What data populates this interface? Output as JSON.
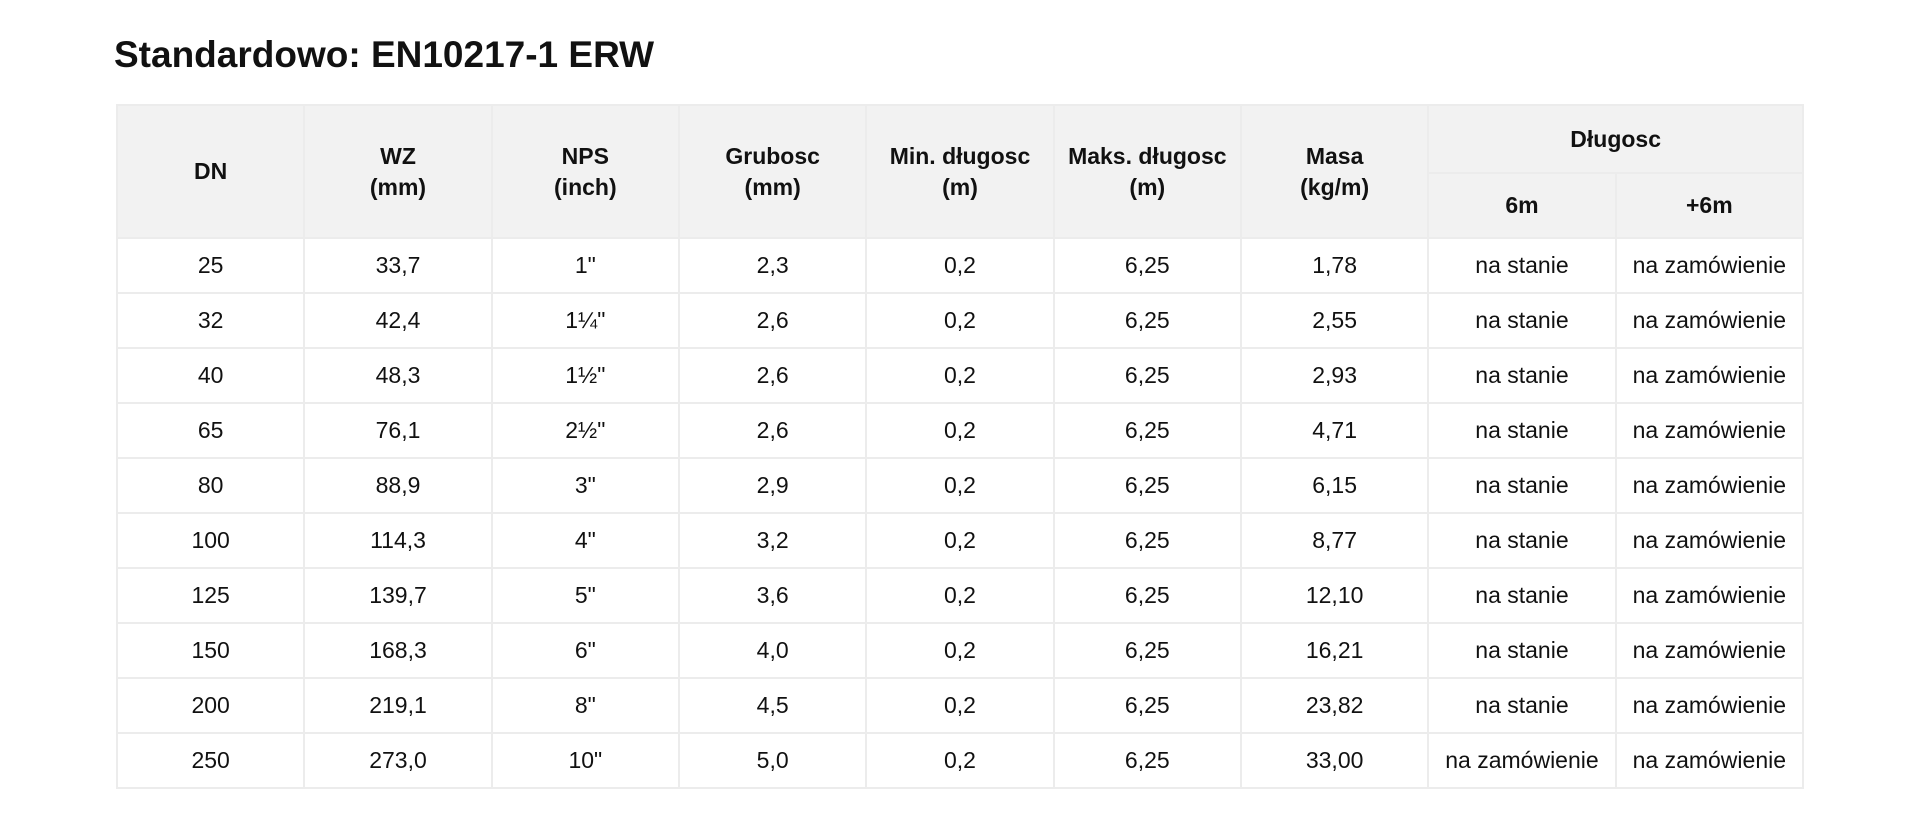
{
  "title": "Standardowo: EN10217-1 ERW",
  "table": {
    "columns": [
      {
        "name": "DN"
      },
      {
        "name": "WZ",
        "unit": "(mm)"
      },
      {
        "name": "NPS",
        "unit": "(inch)"
      },
      {
        "name": "Grubosc",
        "unit": "(mm)"
      },
      {
        "name": "Min. długosc",
        "unit": "(m)"
      },
      {
        "name": "Maks. długosc",
        "unit": "(m)"
      },
      {
        "name": "Masa",
        "unit": "(kg/m)"
      }
    ],
    "group": {
      "label": "Długosc",
      "columns": [
        "6m",
        "+6m"
      ]
    },
    "rows": [
      [
        "25",
        "33,7",
        "1\"",
        "2,3",
        "0,2",
        "6,25",
        "1,78",
        "na stanie",
        "na zamówienie"
      ],
      [
        "32",
        "42,4",
        "1¼\"",
        "2,6",
        "0,2",
        "6,25",
        "2,55",
        "na stanie",
        "na zamówienie"
      ],
      [
        "40",
        "48,3",
        "1½\"",
        "2,6",
        "0,2",
        "6,25",
        "2,93",
        "na stanie",
        "na zamówienie"
      ],
      [
        "65",
        "76,1",
        "2½\"",
        "2,6",
        "0,2",
        "6,25",
        "4,71",
        "na stanie",
        "na zamówienie"
      ],
      [
        "80",
        "88,9",
        "3\"",
        "2,9",
        "0,2",
        "6,25",
        "6,15",
        "na stanie",
        "na zamówienie"
      ],
      [
        "100",
        "114,3",
        "4\"",
        "3,2",
        "0,2",
        "6,25",
        "8,77",
        "na stanie",
        "na zamówienie"
      ],
      [
        "125",
        "139,7",
        "5\"",
        "3,6",
        "0,2",
        "6,25",
        "12,10",
        "na stanie",
        "na zamówienie"
      ],
      [
        "150",
        "168,3",
        "6\"",
        "4,0",
        "0,2",
        "6,25",
        "16,21",
        "na stanie",
        "na zamówienie"
      ],
      [
        "200",
        "219,1",
        "8\"",
        "4,5",
        "0,2",
        "6,25",
        "23,82",
        "na stanie",
        "na zamówienie"
      ],
      [
        "250",
        "273,0",
        "10\"",
        "5,0",
        "0,2",
        "6,25",
        "33,00",
        "na zamówienie",
        "na zamówienie"
      ]
    ]
  }
}
